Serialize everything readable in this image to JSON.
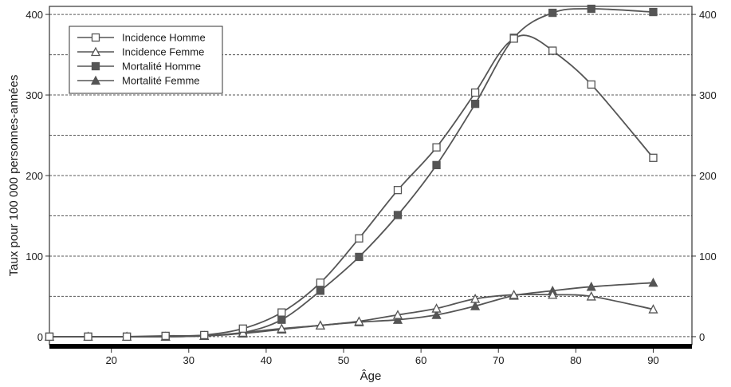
{
  "chart_data": {
    "type": "line",
    "title": "",
    "xlabel": "Âge",
    "ylabel": "Taux pour 100 000 personnes-années",
    "xlim": [
      12,
      95
    ],
    "ylim": [
      -10,
      410
    ],
    "x_ticks": [
      20,
      30,
      40,
      50,
      60,
      70,
      80,
      90
    ],
    "y_ticks": [
      0,
      100,
      200,
      300,
      400
    ],
    "x_tick_labels": [
      "20",
      "30",
      "40",
      "50",
      "60",
      "70",
      "80",
      "90"
    ],
    "y_tick_labels": [
      "0",
      "100",
      "200",
      "300",
      "400"
    ],
    "y_tick_labels_right": [
      "0",
      "100",
      "200",
      "300",
      "400"
    ],
    "dashed_gridlines": [
      0,
      50,
      100,
      150,
      200,
      250,
      300,
      350,
      400
    ],
    "grid": true,
    "legend_position": "top-left",
    "series": [
      {
        "name": "Incidence Homme",
        "marker": "open-square",
        "color": "#555555",
        "points": [
          [
            12,
            0
          ],
          [
            17,
            0
          ],
          [
            22,
            0
          ],
          [
            27,
            1
          ],
          [
            32,
            2
          ],
          [
            37,
            10
          ],
          [
            42,
            30
          ],
          [
            47,
            67
          ],
          [
            52,
            122
          ],
          [
            57,
            182
          ],
          [
            62,
            235
          ],
          [
            67,
            303
          ],
          [
            72,
            370
          ],
          [
            77,
            355
          ],
          [
            82,
            313
          ],
          [
            90,
            222
          ]
        ],
        "curve": [
          [
            12,
            0
          ],
          [
            17,
            0
          ],
          [
            22,
            0
          ],
          [
            27,
            1
          ],
          [
            32,
            2
          ],
          [
            37,
            10
          ],
          [
            42,
            30
          ],
          [
            47,
            67
          ],
          [
            52,
            122
          ],
          [
            57,
            182
          ],
          [
            62,
            235
          ],
          [
            67,
            303
          ],
          [
            70,
            350
          ],
          [
            72,
            370
          ],
          [
            74,
            373
          ],
          [
            77,
            355
          ],
          [
            82,
            313
          ],
          [
            90,
            222
          ]
        ]
      },
      {
        "name": "Incidence Femme",
        "marker": "open-triangle",
        "color": "#555555",
        "points": [
          [
            12,
            0
          ],
          [
            17,
            0
          ],
          [
            22,
            0
          ],
          [
            27,
            0
          ],
          [
            32,
            1
          ],
          [
            37,
            5
          ],
          [
            42,
            10
          ],
          [
            47,
            14
          ],
          [
            52,
            19
          ],
          [
            57,
            27
          ],
          [
            62,
            35
          ],
          [
            67,
            47
          ],
          [
            72,
            52
          ],
          [
            77,
            52
          ],
          [
            82,
            50
          ],
          [
            90,
            34
          ]
        ],
        "curve": [
          [
            12,
            0
          ],
          [
            17,
            0
          ],
          [
            22,
            0
          ],
          [
            27,
            0
          ],
          [
            32,
            1
          ],
          [
            37,
            5
          ],
          [
            42,
            10
          ],
          [
            47,
            14
          ],
          [
            52,
            19
          ],
          [
            57,
            27
          ],
          [
            62,
            35
          ],
          [
            67,
            47
          ],
          [
            72,
            52
          ],
          [
            77,
            52
          ],
          [
            82,
            50
          ],
          [
            90,
            34
          ]
        ]
      },
      {
        "name": "Mortalité Homme",
        "marker": "filled-square",
        "color": "#555555",
        "points": [
          [
            12,
            0
          ],
          [
            17,
            0
          ],
          [
            22,
            0
          ],
          [
            27,
            0
          ],
          [
            32,
            1
          ],
          [
            37,
            5
          ],
          [
            42,
            21
          ],
          [
            47,
            57
          ],
          [
            52,
            99
          ],
          [
            57,
            151
          ],
          [
            62,
            213
          ],
          [
            67,
            289
          ],
          [
            72,
            371
          ],
          [
            77,
            402
          ],
          [
            82,
            407
          ],
          [
            90,
            403
          ]
        ],
        "curve": [
          [
            12,
            0
          ],
          [
            17,
            0
          ],
          [
            22,
            0
          ],
          [
            27,
            0
          ],
          [
            32,
            1
          ],
          [
            37,
            5
          ],
          [
            42,
            21
          ],
          [
            47,
            57
          ],
          [
            52,
            99
          ],
          [
            57,
            151
          ],
          [
            62,
            213
          ],
          [
            67,
            289
          ],
          [
            72,
            371
          ],
          [
            77,
            402
          ],
          [
            82,
            407
          ],
          [
            90,
            403
          ]
        ]
      },
      {
        "name": "Mortalité Femme",
        "marker": "filled-triangle",
        "color": "#555555",
        "points": [
          [
            12,
            0
          ],
          [
            17,
            0
          ],
          [
            22,
            0
          ],
          [
            27,
            0
          ],
          [
            32,
            1
          ],
          [
            37,
            4
          ],
          [
            42,
            9
          ],
          [
            47,
            14
          ],
          [
            52,
            18
          ],
          [
            57,
            21
          ],
          [
            62,
            27
          ],
          [
            67,
            38
          ],
          [
            72,
            51
          ],
          [
            77,
            57
          ],
          [
            82,
            62
          ],
          [
            90,
            67
          ]
        ],
        "curve": [
          [
            12,
            0
          ],
          [
            17,
            0
          ],
          [
            22,
            0
          ],
          [
            27,
            0
          ],
          [
            32,
            1
          ],
          [
            37,
            4
          ],
          [
            42,
            9
          ],
          [
            47,
            14
          ],
          [
            52,
            18
          ],
          [
            57,
            21
          ],
          [
            62,
            27
          ],
          [
            67,
            38
          ],
          [
            72,
            51
          ],
          [
            77,
            57
          ],
          [
            82,
            62
          ],
          [
            90,
            67
          ]
        ]
      }
    ]
  }
}
